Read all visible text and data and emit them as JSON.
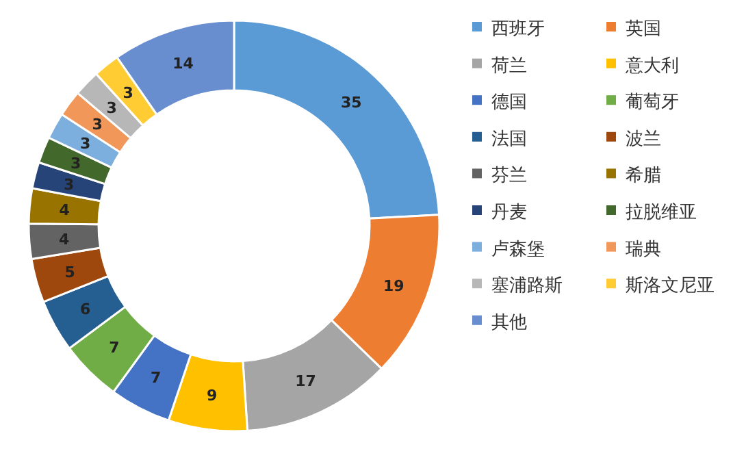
{
  "chart_data": {
    "type": "donut",
    "categories": [
      "西班牙",
      "英国",
      "荷兰",
      "意大利",
      "德国",
      "葡萄牙",
      "法国",
      "波兰",
      "芬兰",
      "希腊",
      "丹麦",
      "拉脱维亚",
      "卢森堡",
      "瑞典",
      "塞浦路斯",
      "斯洛文尼亚",
      "其他"
    ],
    "values": [
      35,
      19,
      17,
      9,
      7,
      7,
      6,
      5,
      4,
      4,
      3,
      3,
      3,
      3,
      3,
      3,
      14
    ],
    "colors": [
      "#5b9bd5",
      "#ed7d31",
      "#a5a5a5",
      "#ffc000",
      "#4472c4",
      "#70ad47",
      "#255e91",
      "#9e480e",
      "#636363",
      "#997300",
      "#264478",
      "#43682b",
      "#7cafdd",
      "#f1975a",
      "#b7b7b7",
      "#ffcd33",
      "#698ed0"
    ],
    "data_labels": true,
    "legend": "right"
  }
}
